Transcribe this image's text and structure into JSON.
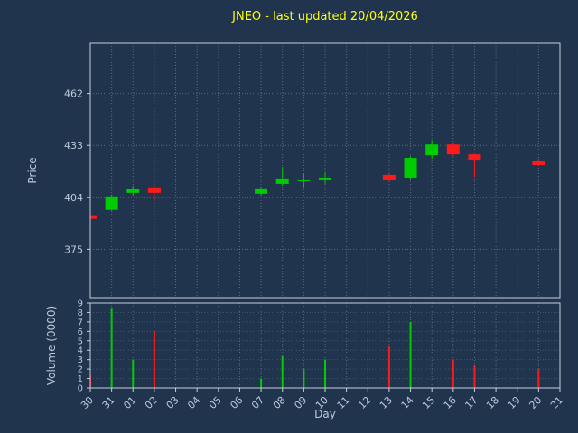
{
  "title": "JNEO - last updated 20/04/2026",
  "axes": {
    "price_label": "Price",
    "volume_label": "Volume (0000)",
    "day_label": "Day"
  },
  "colors": {
    "background": "#20344e",
    "title": "#ffff00",
    "frame": "#c3cedb",
    "text": "#bccadb",
    "grid": "#8fa3bd",
    "up": "#00cc00",
    "down": "#fb1b1b"
  },
  "chart_data": {
    "type": "candlestick",
    "title": "JNEO - last updated 20/04/2026",
    "xlabel": "Day",
    "ylabel": "Price",
    "volume_ylabel": "Volume (0000)",
    "x_labels": [
      "30",
      "31",
      "01",
      "02",
      "03",
      "04",
      "05",
      "06",
      "07",
      "08",
      "09",
      "10",
      "11",
      "12",
      "13",
      "14",
      "15",
      "16",
      "17",
      "18",
      "19",
      "20",
      "21"
    ],
    "price_ticks": [
      375,
      404,
      433,
      462
    ],
    "price_range": [
      348,
      490
    ],
    "volume_ticks": [
      0,
      1,
      2,
      3,
      4,
      5,
      6,
      7,
      8,
      9
    ],
    "volume_range": [
      0,
      9
    ],
    "grid": true,
    "candles": [
      {
        "day": "30",
        "open": 394,
        "high": 394,
        "low": 392,
        "close": 392
      },
      {
        "day": "31",
        "open": 397,
        "high": 405.5,
        "low": 396.5,
        "close": 404.5
      },
      {
        "day": "01",
        "open": 406.5,
        "high": 410.5,
        "low": 405,
        "close": 408.5
      },
      {
        "day": "02",
        "open": 409.5,
        "high": 410.5,
        "low": 401.5,
        "close": 406.5
      },
      {
        "day": "07",
        "open": 406,
        "high": 410,
        "low": 405,
        "close": 409
      },
      {
        "day": "08",
        "open": 411.5,
        "high": 421,
        "low": 410.5,
        "close": 414.5
      },
      {
        "day": "09",
        "open": 413.5,
        "high": 417.5,
        "low": 409.5,
        "close": 413.5
      },
      {
        "day": "10",
        "open": 414.5,
        "high": 418,
        "low": 411.5,
        "close": 414.5
      },
      {
        "day": "13",
        "open": 416.5,
        "high": 417.5,
        "low": 412.5,
        "close": 413.5
      },
      {
        "day": "14",
        "open": 415,
        "high": 427,
        "low": 414,
        "close": 426
      },
      {
        "day": "15",
        "open": 427.5,
        "high": 436,
        "low": 425.5,
        "close": 433.5
      },
      {
        "day": "16",
        "open": 433.5,
        "high": 434.5,
        "low": 427,
        "close": 428
      },
      {
        "day": "17",
        "open": 428,
        "high": 428.5,
        "low": 415.5,
        "close": 425
      },
      {
        "day": "20",
        "open": 424.5,
        "high": 425.5,
        "low": 421.5,
        "close": 422
      }
    ],
    "volumes": [
      {
        "day": "30",
        "value": 1.3
      },
      {
        "day": "31",
        "value": 8.5
      },
      {
        "day": "01",
        "value": 3.0
      },
      {
        "day": "02",
        "value": 6.0
      },
      {
        "day": "07",
        "value": 1.0
      },
      {
        "day": "08",
        "value": 3.4
      },
      {
        "day": "09",
        "value": 2.0
      },
      {
        "day": "10",
        "value": 3.0
      },
      {
        "day": "13",
        "value": 4.4
      },
      {
        "day": "14",
        "value": 7.0
      },
      {
        "day": "16",
        "value": 3.0
      },
      {
        "day": "17",
        "value": 2.4
      },
      {
        "day": "20",
        "value": 2.0
      }
    ]
  }
}
